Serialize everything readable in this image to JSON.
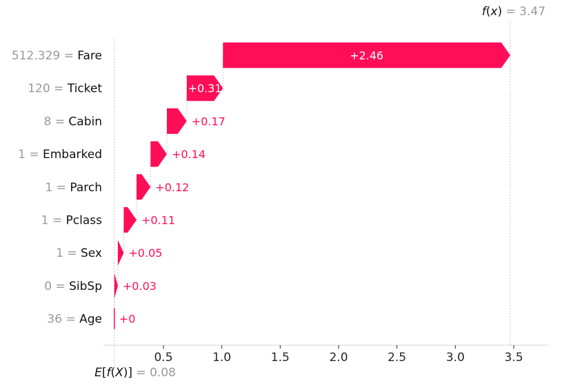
{
  "chart_data": {
    "type": "waterfall",
    "final_label": "f(x)",
    "final_value": 3.47,
    "final_value_text": "3.47",
    "base_label": "E[f(X)]",
    "base_value": 0.08,
    "base_value_text": "0.08",
    "xlim": [
      0,
      3.77
    ],
    "x_tick_values": [
      0.5,
      1.0,
      1.5,
      2.0,
      2.5,
      3.0,
      3.5
    ],
    "x_ticks": [
      "0.5",
      "1.0",
      "1.5",
      "2.0",
      "2.5",
      "3.0",
      "3.5"
    ],
    "rows": [
      {
        "feature": "Fare",
        "value_text": "512.329",
        "contribution": 2.46,
        "label": "+2.46"
      },
      {
        "feature": "Ticket",
        "value_text": "120",
        "contribution": 0.31,
        "label": "+0.31"
      },
      {
        "feature": "Cabin",
        "value_text": "8",
        "contribution": 0.17,
        "label": "+0.17"
      },
      {
        "feature": "Embarked",
        "value_text": "1",
        "contribution": 0.14,
        "label": "+0.14"
      },
      {
        "feature": "Parch",
        "value_text": "1",
        "contribution": 0.12,
        "label": "+0.12"
      },
      {
        "feature": "Pclass",
        "value_text": "1",
        "contribution": 0.11,
        "label": "+0.11"
      },
      {
        "feature": "Sex",
        "value_text": "1",
        "contribution": 0.05,
        "label": "+0.05"
      },
      {
        "feature": "SibSp",
        "value_text": "0",
        "contribution": 0.03,
        "label": "+0.03"
      },
      {
        "feature": "Age",
        "value_text": "36",
        "contribution": 0.0,
        "label": "+0"
      }
    ],
    "legend": "none",
    "grid": "off",
    "colors": {
      "positive": "#ff0d57",
      "inbar_text": "#ffffff",
      "value_text": "#999999",
      "feature_text": "#111111",
      "gridline": "#b5b5b5",
      "axis": "#d6d6d6",
      "tick_text": "#262626"
    }
  }
}
